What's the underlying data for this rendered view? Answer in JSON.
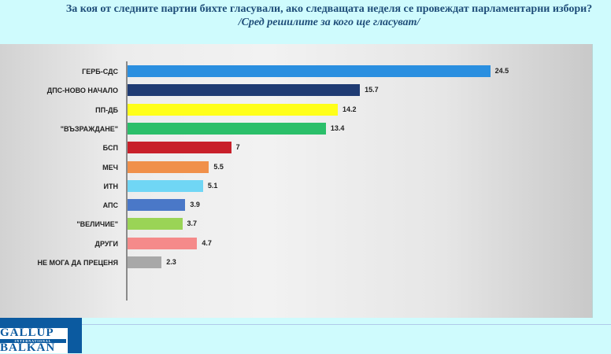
{
  "title": {
    "line1": "За коя от следните партии бихте  гласували,  ако следващата неделя се провеждат парламентарни избори?",
    "line2": "/Сред решилите за кого ще гласуват/"
  },
  "logo": {
    "top": "GALLUP",
    "middle": "INTERNATIONAL",
    "bottom": "BALKAN"
  },
  "chart_data": {
    "type": "bar",
    "orientation": "horizontal",
    "title": "За коя от следните партии бихте гласували, ако следващата неделя се провеждат парламентарни избори? /Сред решилите за кого ще гласуват/",
    "xlabel": "",
    "ylabel": "",
    "grid": false,
    "legend": "none",
    "categories": [
      "ГЕРБ-СДС",
      "ДПС-НОВО НАЧАЛО",
      "ПП-ДБ",
      "\"ВЪЗРАЖДАНЕ\"",
      "БСП",
      "МЕЧ",
      "ИТН",
      "АПС",
      "\"ВЕЛИЧИЕ\"",
      "ДРУГИ",
      "НЕ МОГА ДА ПРЕЦЕНЯ"
    ],
    "values": [
      24.5,
      15.7,
      14.2,
      13.4,
      7,
      5.5,
      5.1,
      3.9,
      3.7,
      4.7,
      2.3
    ],
    "value_labels": [
      "24.5",
      "15.7",
      "14.2",
      "13.4",
      "7",
      "5.5",
      "5.1",
      "3.9",
      "3.7",
      "4.7",
      "2.3"
    ],
    "colors": [
      "#2a8fe0",
      "#1f3b73",
      "#ffff1a",
      "#2bbf6a",
      "#c8202a",
      "#f0904a",
      "#70d6f5",
      "#4a78c8",
      "#9ad456",
      "#f58a8a",
      "#a8a8a8"
    ]
  }
}
